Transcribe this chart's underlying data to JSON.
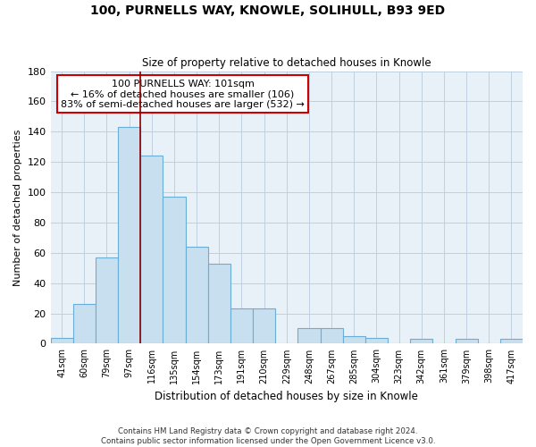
{
  "title": "100, PURNELLS WAY, KNOWLE, SOLIHULL, B93 9ED",
  "subtitle": "Size of property relative to detached houses in Knowle",
  "xlabel": "Distribution of detached houses by size in Knowle",
  "ylabel": "Number of detached properties",
  "bar_labels": [
    "41sqm",
    "60sqm",
    "79sqm",
    "97sqm",
    "116sqm",
    "135sqm",
    "154sqm",
    "173sqm",
    "191sqm",
    "210sqm",
    "229sqm",
    "248sqm",
    "267sqm",
    "285sqm",
    "304sqm",
    "323sqm",
    "342sqm",
    "361sqm",
    "379sqm",
    "398sqm",
    "417sqm"
  ],
  "bar_values": [
    4,
    26,
    57,
    143,
    124,
    97,
    64,
    53,
    23,
    23,
    0,
    10,
    10,
    5,
    4,
    0,
    3,
    0,
    3,
    0,
    3
  ],
  "bar_color": "#c8dff0",
  "bar_edge_color": "#6aaed6",
  "ylim": [
    0,
    180
  ],
  "yticks": [
    0,
    20,
    40,
    60,
    80,
    100,
    120,
    140,
    160,
    180
  ],
  "vline_x_index": 4,
  "vline_color": "#8b0000",
  "annotation_title": "100 PURNELLS WAY: 101sqm",
  "annotation_line1": "← 16% of detached houses are smaller (106)",
  "annotation_line2": "83% of semi-detached houses are larger (532) →",
  "annotation_box_color": "#ffffff",
  "annotation_box_edge": "#cc0000",
  "footer_line1": "Contains HM Land Registry data © Crown copyright and database right 2024.",
  "footer_line2": "Contains public sector information licensed under the Open Government Licence v3.0.",
  "background_color": "#ffffff",
  "plot_bg_color": "#e8f0f8",
  "grid_color": "#c0cfe0"
}
